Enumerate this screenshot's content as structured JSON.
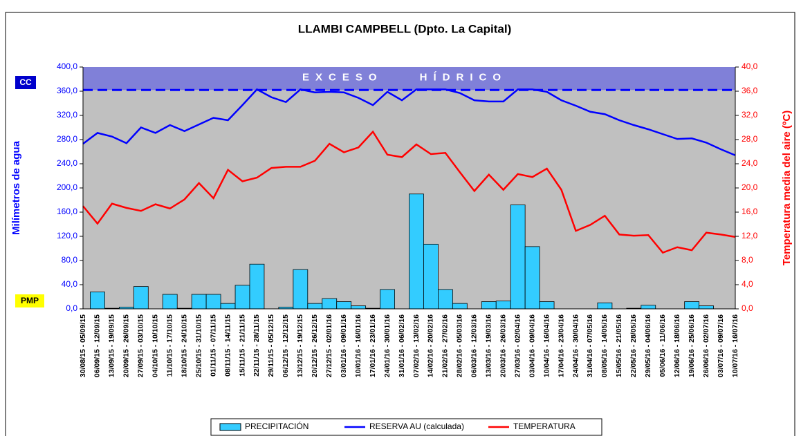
{
  "chart_data": {
    "type": "combo",
    "title": "LLAMBI CAMPBELL (Dpto. La Capital)",
    "ylabel": "Milímetros de agua",
    "y2label": "Temperatura media del aire (ºC)",
    "categories": [
      "30/08/15 - 05/09/15",
      "06/09/15 - 12/09/15",
      "13/09/15 - 19/09/15",
      "20/09/15 - 26/09/15",
      "27/09/15 - 03/10/15",
      "04/10/15 - 10/10/15",
      "11/10/15 - 17/10/15",
      "18/10/15 - 24/10/15",
      "25/10/15 - 31/10/15",
      "01/11/15 - 07/11/15",
      "08/11/15 - 14/11/15",
      "15/11/15 - 21/11/15",
      "22/11/15 - 28/11/15",
      "29/11/15 - 05/12/15",
      "06/12/15 - 12/12/15",
      "13/12/15 - 19/12/15",
      "20/12/15 - 26/12/15",
      "27/12/15 - 02/01/16",
      "03/01/16 - 09/01/16",
      "10/01/16 - 16/01/16",
      "17/01/16 - 23/01/16",
      "24/01/16 - 30/01/16",
      "31/01/16 - 06/02/16",
      "07/02/16 - 13/02/16",
      "14/02/16 - 20/02/16",
      "21/02/16 - 27/02/16",
      "28/02/16 - 05/03/16",
      "06/03/16 - 12/03/16",
      "13/03/16 - 19/03/16",
      "20/03/16 - 26/03/16",
      "27/03/16 - 02/04/16",
      "03/04/16 - 09/04/16",
      "10/04/16 - 16/04/16",
      "17/04/16 - 23/04/16",
      "24/04/16 - 30/04/16",
      "31/04/16 - 07/05/16",
      "08/05/16 - 14/05/16",
      "15/05/16 - 21/05/16",
      "22/05/16 - 28/05/16",
      "29/05/16 - 04/06/16",
      "05/06/16 - 11/06/16",
      "12/06/16 - 18/06/16",
      "19/06/16 - 25/06/16",
      "26/06/16 - 02/07/16",
      "03/07/16 - 09/07/16",
      "10/07/16 - 16/07/16"
    ],
    "series": [
      {
        "name": "PRECIPITACIÓN",
        "type": "bar",
        "color": "#33ccff",
        "values": [
          0,
          28,
          1,
          3,
          37,
          0,
          24,
          1,
          24,
          24,
          9,
          39,
          74,
          0,
          3,
          65,
          9,
          17,
          12,
          5,
          1,
          32,
          0,
          190,
          107,
          32,
          9,
          0,
          12,
          13,
          172,
          103,
          12,
          0,
          0,
          0,
          10,
          0,
          1,
          6,
          0,
          0,
          12,
          5,
          0,
          0
        ]
      },
      {
        "name": "RESERVA AU (calculada)",
        "type": "line",
        "color": "#0000ff",
        "values": [
          273,
          291,
          285,
          274,
          300,
          291,
          304,
          294,
          305,
          316,
          312,
          337,
          363,
          350,
          342,
          363,
          358,
          359,
          358,
          349,
          337,
          359,
          345,
          363,
          363,
          363,
          357,
          345,
          343,
          343,
          363,
          363,
          359,
          345,
          336,
          326,
          322,
          312,
          304,
          297,
          289,
          281,
          282,
          275,
          264,
          254
        ]
      },
      {
        "name": "TEMPERATURA",
        "type": "line",
        "color": "#ff0000",
        "axis": "y2",
        "values": [
          17.0,
          14.1,
          17.4,
          16.7,
          16.2,
          17.3,
          16.6,
          18.1,
          20.8,
          18.3,
          23.0,
          21.1,
          21.7,
          23.3,
          23.5,
          23.5,
          24.5,
          27.3,
          25.9,
          26.7,
          29.3,
          25.5,
          25.1,
          27.2,
          25.6,
          25.8,
          22.6,
          19.5,
          22.2,
          19.7,
          22.3,
          21.8,
          23.2,
          19.7,
          12.9,
          13.9,
          15.4,
          12.3,
          12.1,
          12.2,
          9.3,
          10.2,
          9.7,
          12.6,
          12.3,
          11.9
        ]
      }
    ],
    "ylim": [
      0,
      400
    ],
    "yticks": [
      {
        "value": 0,
        "label": "0,0"
      },
      {
        "value": 40,
        "label": "40,0"
      },
      {
        "value": 80,
        "label": "80,0"
      },
      {
        "value": 120,
        "label": "120,0"
      },
      {
        "value": 160,
        "label": "160,0"
      },
      {
        "value": 200,
        "label": "200,0"
      },
      {
        "value": 240,
        "label": "240,0"
      },
      {
        "value": 280,
        "label": "280,0"
      },
      {
        "value": 320,
        "label": "320,0"
      },
      {
        "value": 360,
        "label": "360,0"
      },
      {
        "value": 400,
        "label": "400,0"
      }
    ],
    "y2lim": [
      0,
      40
    ],
    "y2ticks": [
      {
        "value": 0,
        "label": "0,0"
      },
      {
        "value": 4,
        "label": "4,0"
      },
      {
        "value": 8,
        "label": "8,0"
      },
      {
        "value": 12,
        "label": "12,0"
      },
      {
        "value": 16,
        "label": "16,0"
      },
      {
        "value": 20,
        "label": "20,0"
      },
      {
        "value": 24,
        "label": "24,0"
      },
      {
        "value": 28,
        "label": "28,0"
      },
      {
        "value": 32,
        "label": "32,0"
      },
      {
        "value": 36,
        "label": "36,0"
      },
      {
        "value": 40,
        "label": "40,0"
      }
    ],
    "excess_band": {
      "label": "EXCESO HÍDRICO",
      "from": 362,
      "to": 400,
      "color": "#8080d8"
    },
    "annotations": {
      "cc": "CC",
      "pmp": "PMP"
    },
    "legend": "bottom"
  }
}
